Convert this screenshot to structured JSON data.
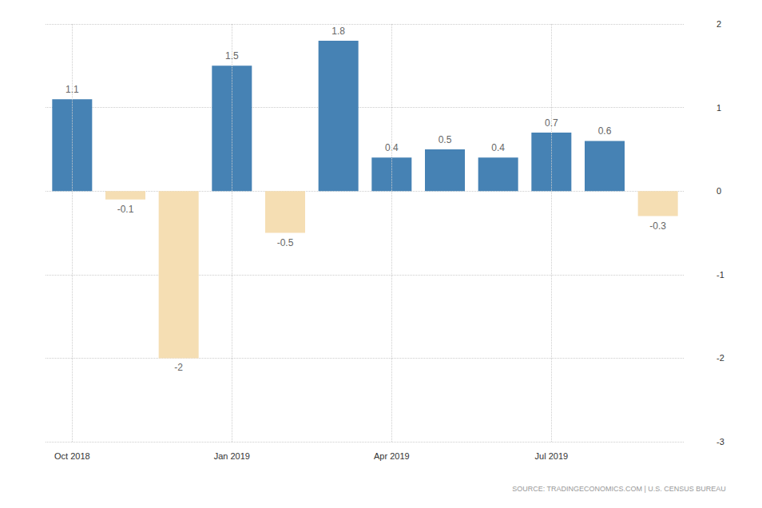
{
  "chart_data": {
    "type": "bar",
    "categories": [
      "Oct 2018",
      null,
      null,
      "Jan 2019",
      null,
      null,
      "Apr 2019",
      null,
      null,
      "Jul 2019",
      null,
      null
    ],
    "values": [
      1.1,
      -0.1,
      -2,
      1.5,
      -0.5,
      1.8,
      0.4,
      0.5,
      0.4,
      0.7,
      0.6,
      -0.3
    ],
    "colors": [
      "#4682b4",
      "#f5deb3",
      "#f5deb3",
      "#4682b4",
      "#f5deb3",
      "#4682b4",
      "#4682b4",
      "#4682b4",
      "#4682b4",
      "#4682b4",
      "#4682b4",
      "#f5deb3"
    ],
    "ylim": [
      -3,
      2
    ],
    "yticks": [
      -3,
      -2,
      -1,
      0,
      1,
      2
    ],
    "grid": true,
    "data_labels": true,
    "annotations": [
      "SOURCE: TRADINGECONOMICS.COM | U.S. CENSUS BUREAU"
    ]
  }
}
